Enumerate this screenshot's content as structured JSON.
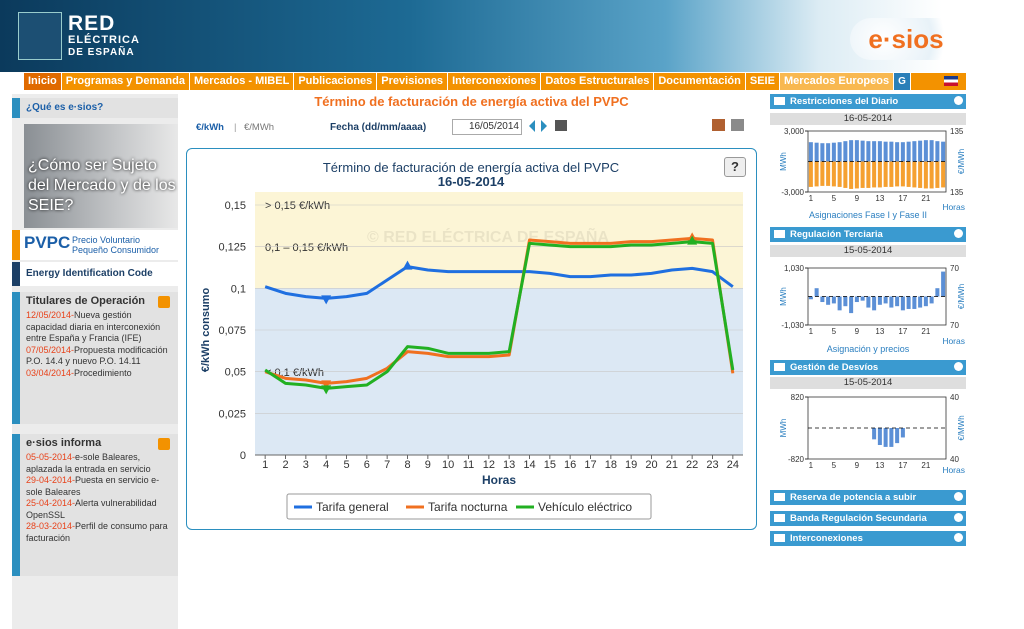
{
  "header": {
    "logo_line1": "RED",
    "logo_line2": "ELÉCTRICA",
    "logo_line3": "DE ESPAÑA",
    "brand": "e·sios"
  },
  "nav": [
    "Inicio",
    "Programas y Demanda",
    "Mercados - MIBEL",
    "Publicaciones",
    "Previsiones",
    "Interconexiones",
    "Datos Estructurales",
    "Documentación",
    "SEIE",
    "Mercados Europeos",
    "G"
  ],
  "sidebar": {
    "what_is": "¿Qué es e·sios?",
    "banner": "¿Cómo ser Sujeto del Mercado y de los SEIE?",
    "pvpc_logo": "PVPC",
    "pvpc_text": "Precio Voluntario Pequeño Consumidor",
    "eic": "Energy Identification Code",
    "titulares": {
      "title": "Titulares de Operación",
      "items": [
        {
          "date": "12/05/2014-",
          "text": "Nueva gestión capacidad diaria en interconexión entre España y Francia (IFE)"
        },
        {
          "date": "07/05/2014-",
          "text": "Propuesta modificación P.O. 14.4 y nuevo P.O. 14.11"
        },
        {
          "date": "03/04/2014-",
          "text": "Procedimiento"
        }
      ]
    },
    "informa": {
      "title": "e·sios informa",
      "items": [
        {
          "date": "05-05-2014-",
          "text": "e-sole Baleares, aplazada la entrada en servicio"
        },
        {
          "date": "29-04-2014-",
          "text": "Puesta en servicio e-sole Baleares"
        },
        {
          "date": "25-04-2014-",
          "text": "Alerta vulnerabilidad OpenSSL"
        },
        {
          "date": "28-03-2014-",
          "text": "Perfil de consumo para facturación"
        }
      ]
    }
  },
  "main": {
    "page_title": "Término de facturación de energía activa del PVPC",
    "unit_kwh": "€/kWh",
    "unit_sep": "|",
    "unit_mwh": "€/MWh",
    "date_label": "Fecha (dd/mm/aaaa)",
    "date_value": "16/05/2014",
    "help": "?"
  },
  "chart_data": {
    "type": "line",
    "title": "Término de facturación de energía activa del PVPC",
    "subtitle": "16-05-2014",
    "watermark": "© RED ELÉCTRICA DE ESPAÑA",
    "x_label": "Horas",
    "y_label": "€/kWh consumo",
    "x": [
      1,
      2,
      3,
      4,
      5,
      6,
      7,
      8,
      9,
      10,
      11,
      12,
      13,
      14,
      15,
      16,
      17,
      18,
      19,
      20,
      21,
      22,
      23,
      24
    ],
    "xlim": [
      0.5,
      24.5
    ],
    "ylim": [
      0,
      0.15
    ],
    "yticks": [
      0,
      {
        "value": 0.025,
        "label": "0,025"
      },
      {
        "value": 0.05,
        "label": "0,05"
      },
      {
        "value": 0.075,
        "label": "0,075"
      },
      {
        "value": 0.1,
        "label": "0,1"
      },
      {
        "value": 0.125,
        "label": "0,125"
      },
      {
        "value": 0.15,
        "label": "0,15"
      }
    ],
    "bands": [
      {
        "from": 0.1,
        "to": 0.15,
        "color": "#fcf5d6",
        "label": "0,1 – 0,15 €/kWh"
      },
      {
        "from": 0,
        "to": 0.1,
        "color": "#dce8f4",
        "label": "< 0,1 €/kWh"
      }
    ],
    "top_band_label": "> 0,15 €/kWh",
    "series": [
      {
        "name": "Tarifa general",
        "color": "#1f6fe0",
        "values": [
          0.101,
          0.097,
          0.095,
          0.094,
          0.095,
          0.097,
          0.105,
          0.113,
          0.111,
          0.11,
          0.11,
          0.11,
          0.11,
          0.11,
          0.109,
          0.107,
          0.107,
          0.108,
          0.108,
          0.109,
          0.111,
          0.112,
          0.11,
          0.101
        ]
      },
      {
        "name": "Tarifa nocturna",
        "color": "#f07020",
        "values": [
          0.05,
          0.046,
          0.045,
          0.043,
          0.044,
          0.046,
          0.052,
          0.062,
          0.061,
          0.059,
          0.059,
          0.059,
          0.06,
          0.129,
          0.128,
          0.127,
          0.127,
          0.127,
          0.128,
          0.128,
          0.129,
          0.13,
          0.129,
          0.049
        ]
      },
      {
        "name": "Vehículo eléctrico",
        "color": "#22b022",
        "values": [
          0.051,
          0.043,
          0.042,
          0.04,
          0.041,
          0.042,
          0.05,
          0.065,
          0.064,
          0.061,
          0.061,
          0.061,
          0.062,
          0.127,
          0.126,
          0.125,
          0.125,
          0.125,
          0.126,
          0.126,
          0.127,
          0.128,
          0.127,
          0.051
        ]
      }
    ]
  },
  "right_panels": [
    {
      "title": "Restricciones del Diario",
      "date": "16-05-2014",
      "caption": "Asignaciones Fase I y Fase II"
    },
    {
      "title": "Regulación Terciaria",
      "date": "15-05-2014",
      "caption": "Asignación y precios"
    },
    {
      "title": "Gestión de Desvíos",
      "date": "15-05-2014"
    },
    {
      "title": "Reserva de potencia a subir"
    },
    {
      "title": "Banda Regulación Secundaria"
    },
    {
      "title": "Interconexiones"
    }
  ],
  "mini_charts": [
    {
      "type": "bar",
      "y_label": "MWh",
      "y2_label": "€/MWh",
      "x_label": "Horas",
      "ylim": [
        -3000,
        3000
      ],
      "yticks": [
        {
          "value": 3000,
          "label": "3,000"
        },
        {
          "value": -3000,
          "label": "-3,000"
        }
      ],
      "y2_labels": [
        "135",
        "135"
      ],
      "xlim": [
        0.5,
        24.5
      ],
      "xticks": [
        1,
        5,
        9,
        13,
        17,
        21
      ],
      "series": [
        {
          "color": "#5b8fd6",
          "values": [
            1900,
            1850,
            1800,
            1800,
            1850,
            1900,
            2000,
            2100,
            2100,
            2050,
            2000,
            2000,
            2000,
            1950,
            1950,
            1900,
            1900,
            1950,
            2000,
            2050,
            2100,
            2100,
            2000,
            1950
          ]
        },
        {
          "color": "#f5a030",
          "values": [
            -2500,
            -2450,
            -2400,
            -2400,
            -2450,
            -2500,
            -2600,
            -2700,
            -2650,
            -2600,
            -2600,
            -2550,
            -2550,
            -2500,
            -2500,
            -2450,
            -2450,
            -2500,
            -2550,
            -2600,
            -2650,
            -2650,
            -2600,
            -2550
          ]
        }
      ]
    },
    {
      "type": "bar",
      "y_label": "MWh",
      "y2_label": "€/MWh",
      "x_label": "Horas",
      "ylim": [
        -1030,
        1030
      ],
      "yticks": [
        {
          "value": 1030,
          "label": "1,030"
        },
        {
          "value": -1030,
          "label": "-1,030"
        }
      ],
      "y2_labels": [
        "70",
        "70"
      ],
      "xlim": [
        0.5,
        24.5
      ],
      "xticks": [
        1,
        5,
        9,
        13,
        17,
        21
      ],
      "series": [
        {
          "color": "#5b8fd6",
          "values": [
            -100,
            300,
            -200,
            -300,
            -250,
            -500,
            -350,
            -600,
            -200,
            -150,
            -400,
            -500,
            -300,
            -250,
            -400,
            -350,
            -500,
            -450,
            -450,
            -400,
            -350,
            -250,
            300,
            900
          ]
        }
      ]
    },
    {
      "type": "bar",
      "y_label": "MWh",
      "y2_label": "€/MWh",
      "x_label": "Horas",
      "ylim": [
        -820,
        820
      ],
      "yticks": [
        {
          "value": 820,
          "label": "820"
        },
        {
          "value": -820,
          "label": "-820"
        }
      ],
      "y2_labels": [
        "40",
        "40"
      ],
      "xlim": [
        0.5,
        24.5
      ],
      "xticks": [
        1,
        5,
        9,
        13,
        17,
        21
      ],
      "series": [
        {
          "color": "#5b8fd6",
          "values": [
            0,
            0,
            0,
            0,
            0,
            0,
            0,
            0,
            0,
            0,
            0,
            -300,
            -450,
            -500,
            -500,
            -400,
            -250,
            0,
            0,
            0,
            0,
            0,
            0,
            0
          ]
        }
      ]
    }
  ]
}
